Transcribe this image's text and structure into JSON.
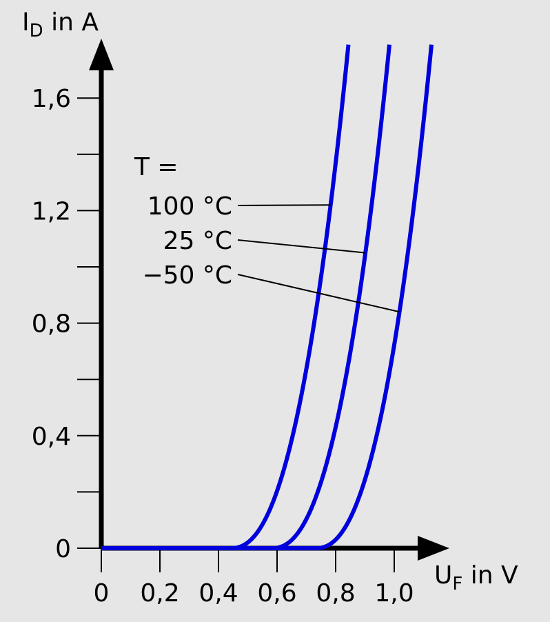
{
  "chart_data": {
    "type": "line",
    "xlabel": "U",
    "xlabel_sub": "F",
    "xlabel_unit": " in V",
    "ylabel": "I",
    "ylabel_sub": "D",
    "ylabel_unit": " in A",
    "xlim": [
      0,
      1.1
    ],
    "ylim": [
      0,
      1.8
    ],
    "x_ticks": [
      0,
      0.2,
      0.4,
      0.6,
      0.8,
      1.0
    ],
    "x_tick_labels": [
      "0",
      "0,2",
      "0,4",
      "0,6",
      "0,8",
      "1,0"
    ],
    "y_ticks": [
      0,
      0.2,
      0.4,
      0.6,
      0.8,
      1.0,
      1.2,
      1.4,
      1.6
    ],
    "y_labeled_ticks": [
      0,
      0.4,
      0.8,
      1.2,
      1.6
    ],
    "y_tick_labels": [
      "0",
      "0,4",
      "0,8",
      "1,2",
      "1,6"
    ],
    "annotation_header": "T  =",
    "series": [
      {
        "name": "100 °C",
        "color": "#0000dd",
        "x_at_1_0A": 0.755,
        "x_onset": 0.44
      },
      {
        "name": "25 °C",
        "color": "#0000dd",
        "x_at_1_0A": 0.895,
        "x_onset": 0.58
      },
      {
        "name": "−50 °C",
        "color": "#0000dd",
        "x_at_1_0A": 1.04,
        "x_onset": 0.73
      }
    ],
    "grid": false,
    "legend": "inline annotations with leader lines"
  }
}
